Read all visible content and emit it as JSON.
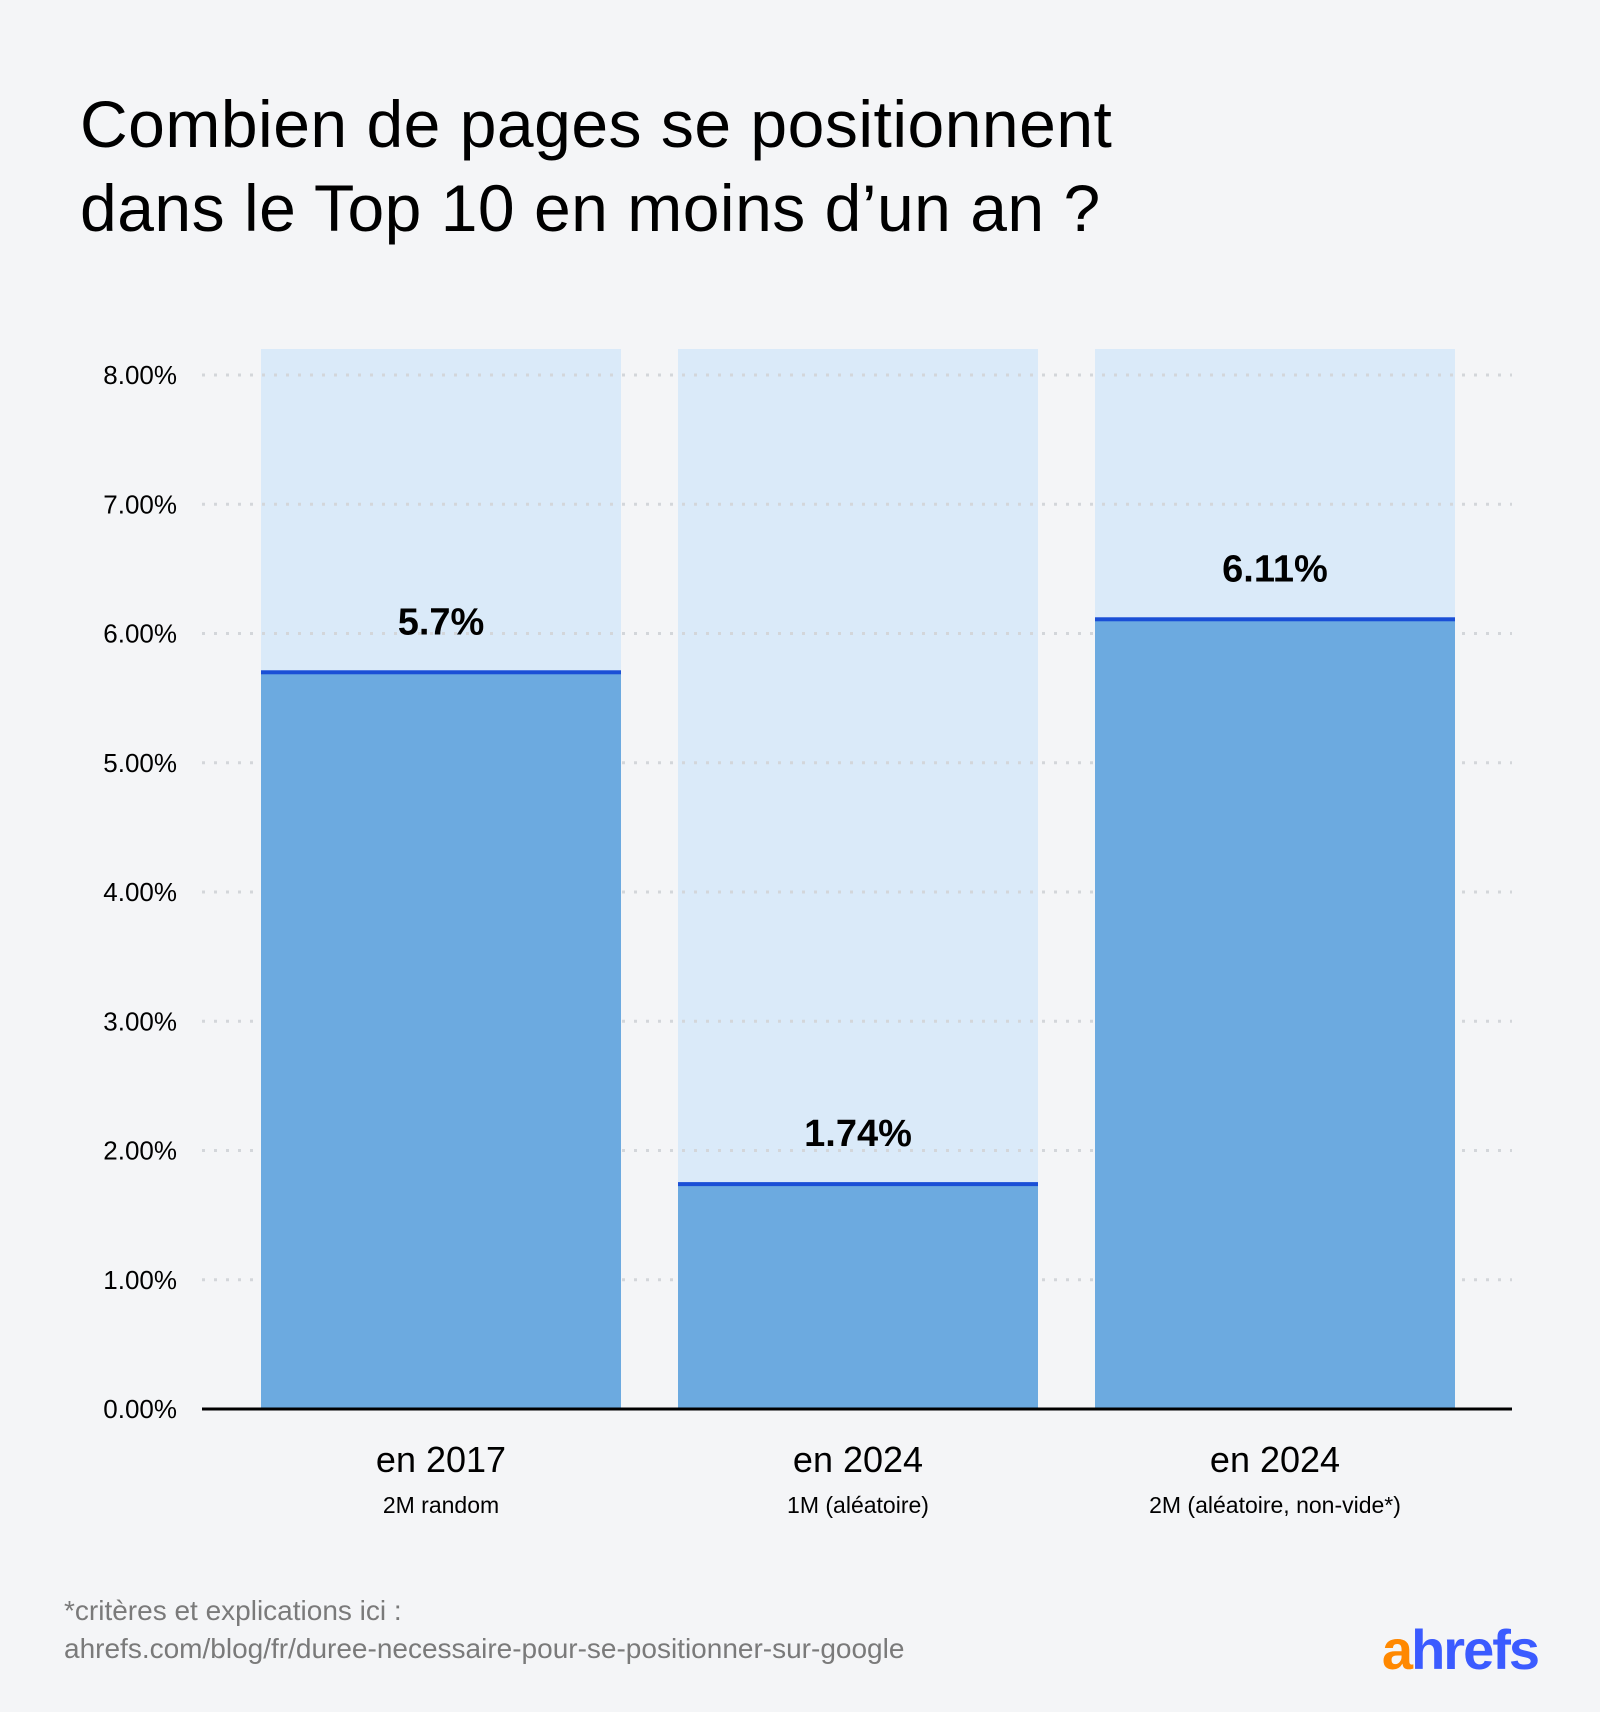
{
  "title_lines": [
    "Combien de pages se positionnent",
    "dans le Top 10 en moins d’un an ?"
  ],
  "chart_data": {
    "type": "bar",
    "title": "Combien de pages se positionnent dans le Top 10 en moins d’un an ?",
    "categories": [
      "en 2017",
      "en 2024",
      "en 2024"
    ],
    "subcategories": [
      "2M random",
      "1M (aléatoire)",
      "2M (aléatoire, non-vide*)"
    ],
    "values": [
      5.7,
      1.74,
      6.11
    ],
    "value_labels": [
      "5.7%",
      "1.74%",
      "6.11%"
    ],
    "ylim": [
      0,
      8
    ],
    "yticks": [
      0,
      1,
      2,
      3,
      4,
      5,
      6,
      7,
      8
    ],
    "ytick_labels": [
      "0.00%",
      "1.00%",
      "2.00%",
      "3.00%",
      "4.00%",
      "5.00%",
      "6.00%",
      "7.00%",
      "8.00%"
    ],
    "grid": true,
    "xlabel": "",
    "ylabel": ""
  },
  "colors": {
    "bar_fill": "#6caae0",
    "bar_background": "#daeaf9",
    "bar_top_line": "#1a4fd6",
    "grid": "#d3d6da",
    "axis": "#000000",
    "logo_a": "#ff8800",
    "logo_rest": "#3b5bff"
  },
  "footer": {
    "line1": "*critères et explications ici :",
    "line2": "ahrefs.com/blog/fr/duree-necessaire-pour-se-positionner-sur-google"
  },
  "logo": {
    "a": "a",
    "rest": "hrefs"
  }
}
